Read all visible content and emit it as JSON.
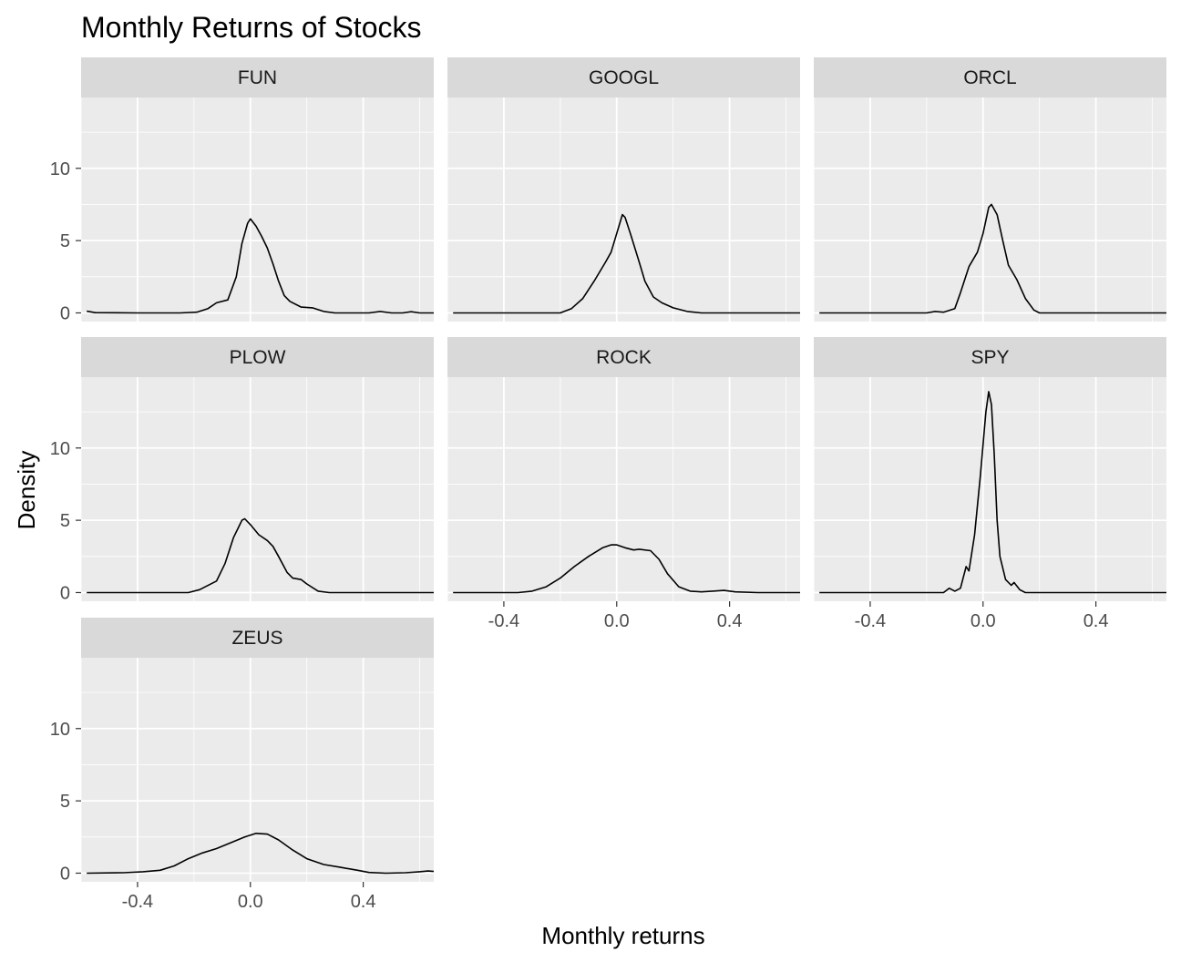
{
  "chart_data": {
    "type": "line",
    "title": "Monthly Returns of Stocks",
    "xlabel": "Monthly returns",
    "ylabel": "Density",
    "xlim": [
      -0.6,
      0.65
    ],
    "ylim": [
      -0.6,
      14.9
    ],
    "x_ticks": [
      -0.4,
      0.0,
      0.4
    ],
    "x_tick_labels": [
      "-0.4",
      "0.0",
      "0.4"
    ],
    "y_ticks": [
      0,
      5,
      10
    ],
    "y_tick_labels": [
      "0",
      "5",
      "10"
    ],
    "grid": true,
    "series": [
      {
        "name": "FUN",
        "points": [
          [
            -0.58,
            0.12
          ],
          [
            -0.55,
            0.02
          ],
          [
            -0.4,
            0
          ],
          [
            -0.25,
            0
          ],
          [
            -0.19,
            0.05
          ],
          [
            -0.15,
            0.3
          ],
          [
            -0.12,
            0.7
          ],
          [
            -0.08,
            0.9
          ],
          [
            -0.05,
            2.5
          ],
          [
            -0.03,
            4.8
          ],
          [
            -0.01,
            6.2
          ],
          [
            0.0,
            6.5
          ],
          [
            0.02,
            6.0
          ],
          [
            0.04,
            5.3
          ],
          [
            0.06,
            4.5
          ],
          [
            0.08,
            3.4
          ],
          [
            0.1,
            2.2
          ],
          [
            0.12,
            1.2
          ],
          [
            0.14,
            0.8
          ],
          [
            0.18,
            0.4
          ],
          [
            0.22,
            0.35
          ],
          [
            0.26,
            0.1
          ],
          [
            0.3,
            0
          ],
          [
            0.42,
            0
          ],
          [
            0.46,
            0.1
          ],
          [
            0.5,
            0
          ],
          [
            0.54,
            0
          ],
          [
            0.57,
            0.08
          ],
          [
            0.6,
            0
          ],
          [
            0.65,
            0
          ]
        ]
      },
      {
        "name": "GOOGL",
        "points": [
          [
            -0.58,
            0
          ],
          [
            -0.2,
            0
          ],
          [
            -0.16,
            0.3
          ],
          [
            -0.12,
            1.0
          ],
          [
            -0.08,
            2.2
          ],
          [
            -0.04,
            3.5
          ],
          [
            -0.02,
            4.2
          ],
          [
            0.0,
            5.5
          ],
          [
            0.02,
            6.8
          ],
          [
            0.03,
            6.6
          ],
          [
            0.05,
            5.4
          ],
          [
            0.08,
            3.5
          ],
          [
            0.1,
            2.2
          ],
          [
            0.13,
            1.1
          ],
          [
            0.16,
            0.7
          ],
          [
            0.2,
            0.35
          ],
          [
            0.25,
            0.1
          ],
          [
            0.3,
            0
          ],
          [
            0.65,
            0
          ]
        ]
      },
      {
        "name": "ORCL",
        "points": [
          [
            -0.58,
            0
          ],
          [
            -0.2,
            0
          ],
          [
            -0.17,
            0.1
          ],
          [
            -0.14,
            0.05
          ],
          [
            -0.1,
            0.3
          ],
          [
            -0.08,
            1.4
          ],
          [
            -0.05,
            3.2
          ],
          [
            -0.02,
            4.2
          ],
          [
            0.0,
            5.5
          ],
          [
            0.02,
            7.3
          ],
          [
            0.03,
            7.5
          ],
          [
            0.05,
            6.8
          ],
          [
            0.07,
            5.0
          ],
          [
            0.09,
            3.3
          ],
          [
            0.12,
            2.3
          ],
          [
            0.15,
            1.0
          ],
          [
            0.18,
            0.2
          ],
          [
            0.2,
            0
          ],
          [
            0.65,
            0
          ]
        ]
      },
      {
        "name": "PLOW",
        "points": [
          [
            -0.58,
            0
          ],
          [
            -0.22,
            0
          ],
          [
            -0.18,
            0.2
          ],
          [
            -0.12,
            0.8
          ],
          [
            -0.09,
            2.0
          ],
          [
            -0.06,
            3.8
          ],
          [
            -0.03,
            5.0
          ],
          [
            -0.02,
            5.1
          ],
          [
            0.0,
            4.7
          ],
          [
            0.03,
            4.0
          ],
          [
            0.06,
            3.6
          ],
          [
            0.08,
            3.2
          ],
          [
            0.1,
            2.5
          ],
          [
            0.13,
            1.4
          ],
          [
            0.15,
            1.0
          ],
          [
            0.18,
            0.9
          ],
          [
            0.2,
            0.6
          ],
          [
            0.24,
            0.1
          ],
          [
            0.28,
            0
          ],
          [
            0.65,
            0
          ]
        ]
      },
      {
        "name": "ROCK",
        "points": [
          [
            -0.58,
            0
          ],
          [
            -0.35,
            0
          ],
          [
            -0.3,
            0.1
          ],
          [
            -0.25,
            0.4
          ],
          [
            -0.2,
            1.0
          ],
          [
            -0.15,
            1.8
          ],
          [
            -0.1,
            2.5
          ],
          [
            -0.05,
            3.1
          ],
          [
            -0.02,
            3.3
          ],
          [
            0.0,
            3.3
          ],
          [
            0.03,
            3.1
          ],
          [
            0.06,
            2.95
          ],
          [
            0.08,
            3.0
          ],
          [
            0.12,
            2.9
          ],
          [
            0.15,
            2.3
          ],
          [
            0.18,
            1.3
          ],
          [
            0.22,
            0.4
          ],
          [
            0.26,
            0.1
          ],
          [
            0.3,
            0.05
          ],
          [
            0.34,
            0.1
          ],
          [
            0.38,
            0.15
          ],
          [
            0.42,
            0.05
          ],
          [
            0.5,
            0
          ],
          [
            0.65,
            0
          ]
        ]
      },
      {
        "name": "SPY",
        "points": [
          [
            -0.58,
            0
          ],
          [
            -0.14,
            0
          ],
          [
            -0.12,
            0.3
          ],
          [
            -0.1,
            0.1
          ],
          [
            -0.08,
            0.3
          ],
          [
            -0.06,
            1.8
          ],
          [
            -0.05,
            1.5
          ],
          [
            -0.03,
            4.0
          ],
          [
            -0.01,
            8.0
          ],
          [
            0.01,
            12.5
          ],
          [
            0.02,
            13.9
          ],
          [
            0.03,
            13.0
          ],
          [
            0.04,
            9.5
          ],
          [
            0.05,
            5.0
          ],
          [
            0.06,
            2.5
          ],
          [
            0.08,
            0.9
          ],
          [
            0.1,
            0.5
          ],
          [
            0.11,
            0.7
          ],
          [
            0.13,
            0.2
          ],
          [
            0.15,
            0
          ],
          [
            0.65,
            0
          ]
        ]
      },
      {
        "name": "ZEUS",
        "points": [
          [
            -0.58,
            0
          ],
          [
            -0.45,
            0.03
          ],
          [
            -0.38,
            0.1
          ],
          [
            -0.32,
            0.2
          ],
          [
            -0.27,
            0.5
          ],
          [
            -0.22,
            1.0
          ],
          [
            -0.17,
            1.4
          ],
          [
            -0.12,
            1.7
          ],
          [
            -0.07,
            2.1
          ],
          [
            -0.02,
            2.5
          ],
          [
            0.02,
            2.75
          ],
          [
            0.06,
            2.7
          ],
          [
            0.1,
            2.3
          ],
          [
            0.15,
            1.6
          ],
          [
            0.2,
            1.0
          ],
          [
            0.26,
            0.6
          ],
          [
            0.32,
            0.4
          ],
          [
            0.38,
            0.2
          ],
          [
            0.42,
            0.05
          ],
          [
            0.48,
            0
          ],
          [
            0.55,
            0.03
          ],
          [
            0.6,
            0.1
          ],
          [
            0.63,
            0.15
          ],
          [
            0.65,
            0.12
          ]
        ]
      }
    ]
  }
}
